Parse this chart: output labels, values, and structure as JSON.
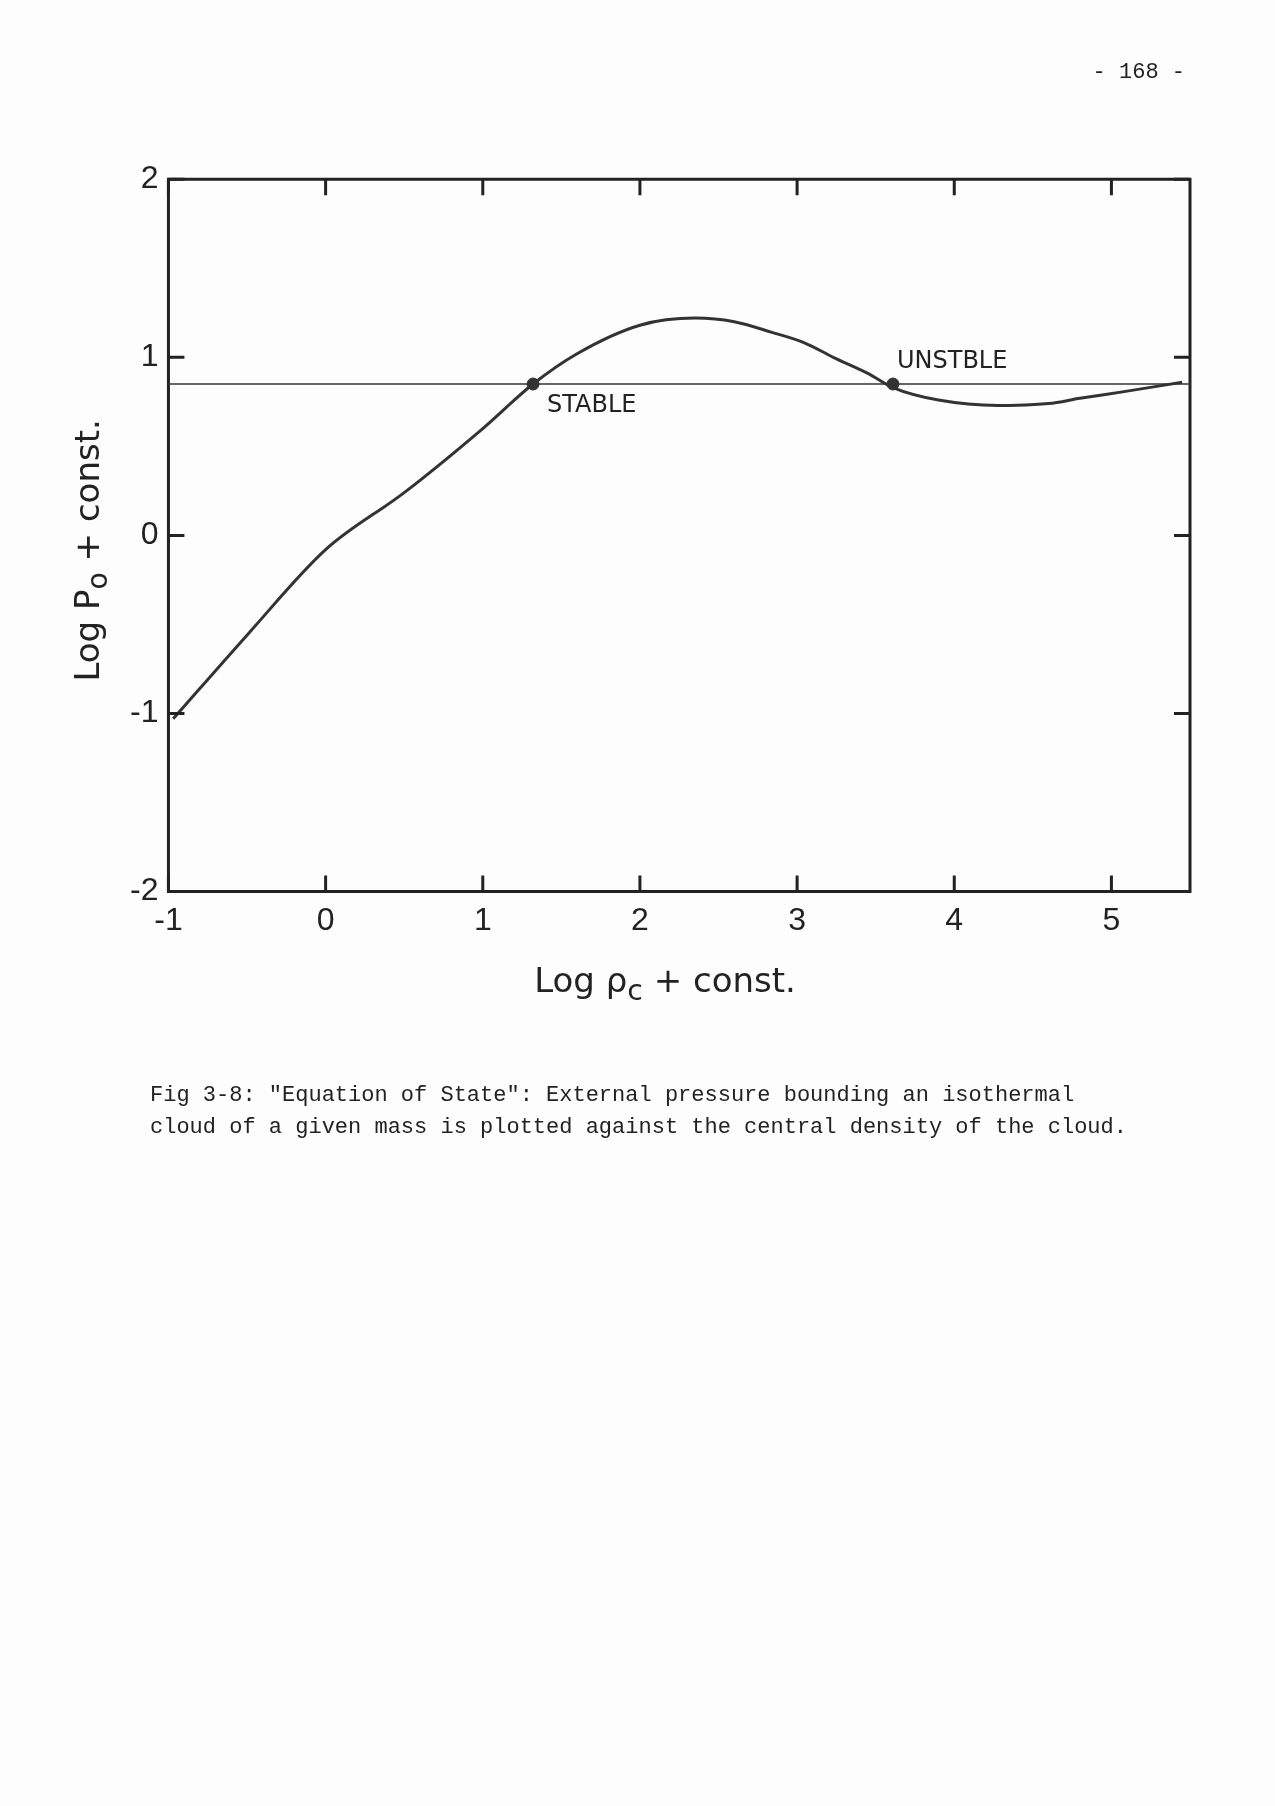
{
  "chart_data": {
    "type": "line",
    "xlabel": "Log ρ$_{c}$ + const.",
    "ylabel": "Log P$_{o}$ + const.",
    "xlim": [
      -1,
      5.5
    ],
    "xticks": [
      -1,
      0,
      1,
      2,
      3,
      4,
      5
    ],
    "ylim": [
      -2,
      2
    ],
    "yticks": [
      -2,
      -1,
      0,
      1,
      2
    ],
    "grid": false,
    "legend": false,
    "series": [
      {
        "color": "#333333",
        "marker": "none",
        "line_style": "solid",
        "x": [
          -0.97,
          -0.5,
          0,
          0.5,
          1,
          1.32,
          1.6,
          2,
          2.35,
          2.6,
          2.84,
          3.05,
          3.23,
          3.45,
          3.61,
          3.9,
          4.28,
          4.6,
          4.8,
          5.1,
          5.45
        ],
        "values": [
          -1.03,
          -0.56,
          -0.08,
          0.24,
          0.6,
          0.85,
          1.02,
          1.18,
          1.22,
          1.2,
          1.14,
          1.08,
          1.0,
          0.91,
          0.83,
          0.76,
          0.73,
          0.74,
          0.77,
          0.81,
          0.86
        ]
      },
      {
        "type": "scatter",
        "color": "#333333",
        "marker": "circle",
        "x": [
          1.32,
          3.61
        ],
        "values": [
          0.85,
          0.85
        ]
      }
    ],
    "ref_lines": [
      {
        "axis": "y",
        "value": 0.85,
        "color": "#333333"
      }
    ],
    "annotations": [
      {
        "text": "STABLE",
        "x": 1.32,
        "y": 0.85
      },
      {
        "text": "UNSTBLE",
        "x": 3.61,
        "y": 0.85
      },
      "- 168 -",
      "Fig 3-8:  \"Equation of State\": External pressure bounding an isothermal cloud of a given mass is plotted against the central density of the cloud."
    ]
  }
}
